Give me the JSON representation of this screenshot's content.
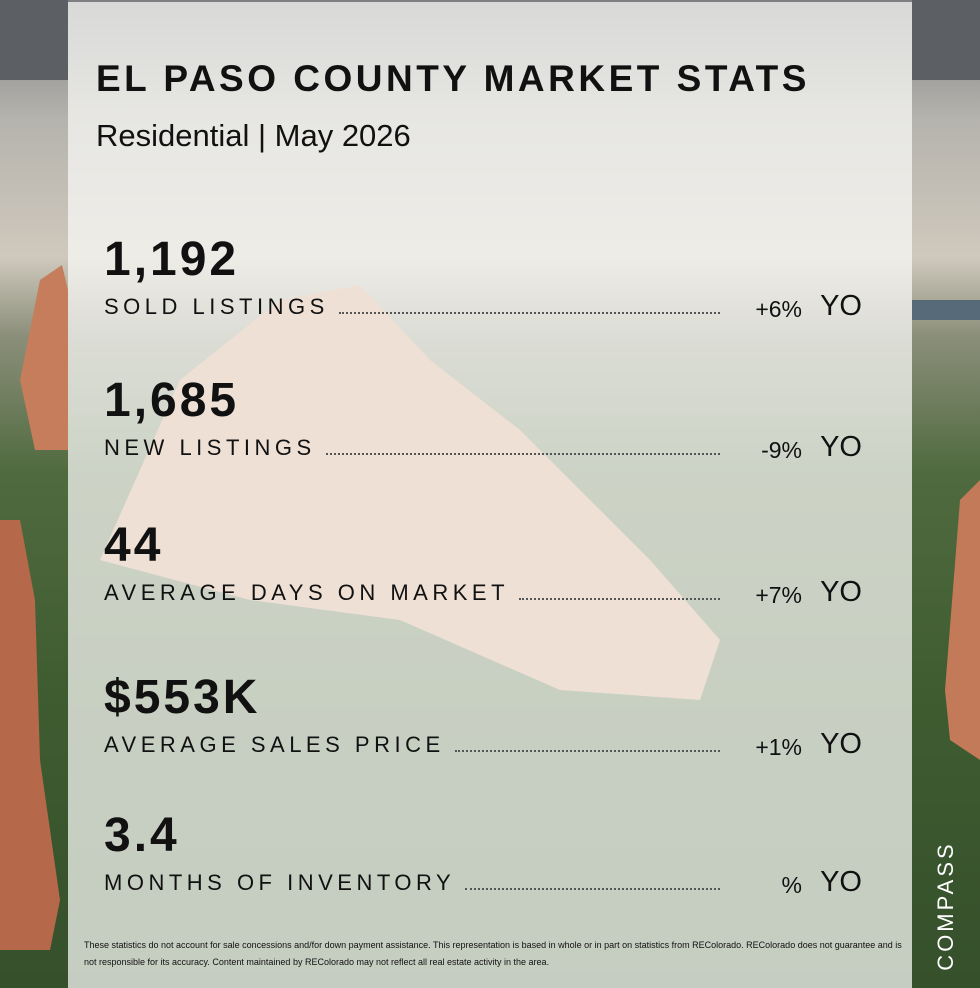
{
  "header": {
    "title": "EL PASO COUNTY MARKET STATS",
    "subtitle": "Residential | May 2026"
  },
  "stats": [
    {
      "value": "1,192",
      "label": "SOLD LISTINGS",
      "change": "+6%",
      "suffix": "YO"
    },
    {
      "value": "1,685",
      "label": "NEW LISTINGS",
      "change": "-9%",
      "suffix": "YO"
    },
    {
      "value": "44",
      "label": "AVERAGE DAYS ON MARKET",
      "change": "+7%",
      "suffix": "YO"
    },
    {
      "value": "$553K",
      "label": "AVERAGE SALES PRICE",
      "change": "+1%",
      "suffix": "YO"
    },
    {
      "value": "3.4",
      "label": "MONTHS OF INVENTORY",
      "change": "%",
      "suffix": "YO"
    }
  ],
  "footer": {
    "disclaimer": "These statistics do not account for sale concessions and/for down payment assistance. This representation is based in whole or in part on statistics from REColorado. REColorado does not guarantee and is not responsible for its accuracy. Content maintained by REColorado may not reflect all real estate activity in the area.",
    "brand": "COMPASS"
  }
}
